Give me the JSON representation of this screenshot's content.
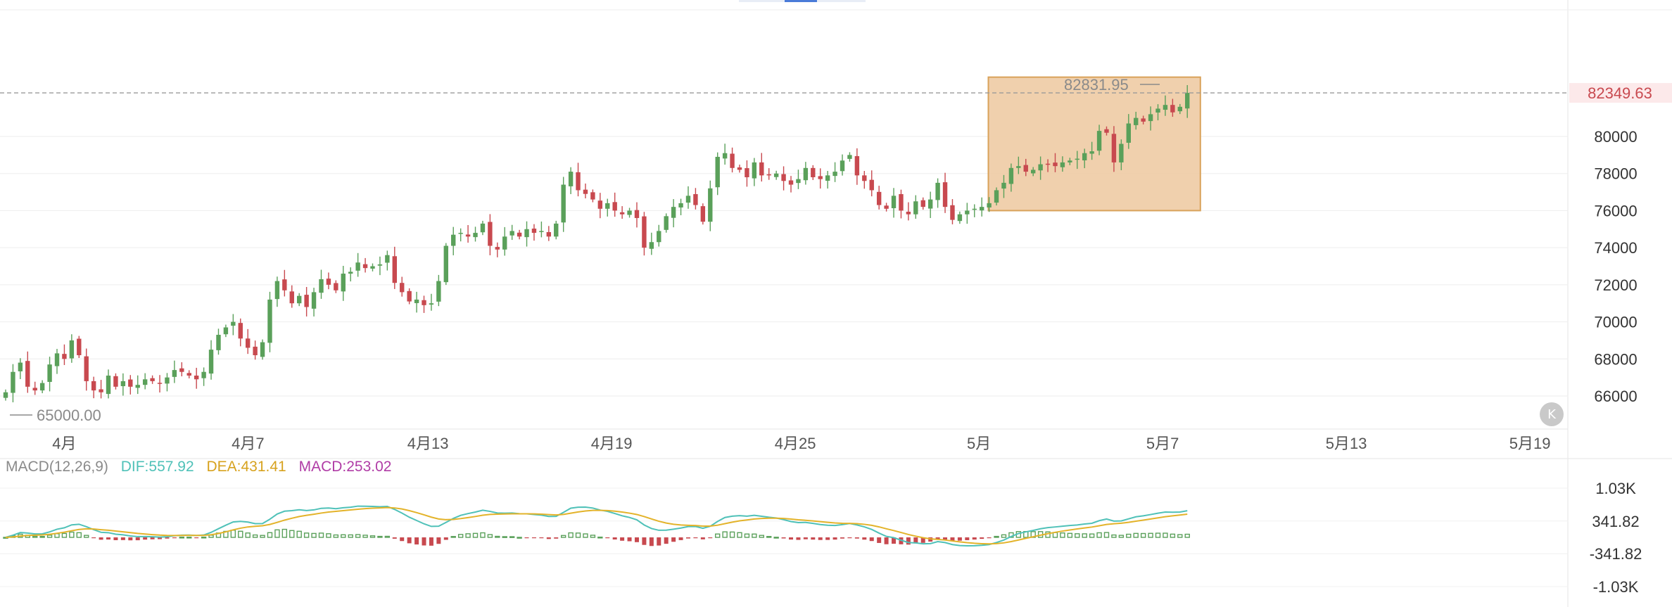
{
  "colors": {
    "up": "#5aa05a",
    "down": "#c8494f",
    "dif": "#4fc1b8",
    "dea": "#e3b32a",
    "macd_label": "#b03ca6",
    "label_gray": "#8a8a8a",
    "grid": "#eeeeee",
    "highlight_fill": "#eecba4",
    "highlight_stroke": "#d9a25a",
    "price_tag": "#c8494f"
  },
  "k_badge": "K",
  "macd_legend": {
    "name": "MACD(12,26,9)",
    "dif": "DIF:557.92",
    "dea": "DEA:431.41",
    "macd": "MACD:253.02"
  },
  "chart_data": [
    {
      "type": "candlestick",
      "title": "",
      "x_tick_labels": [
        "4月",
        "4月7",
        "4月13",
        "4月19",
        "4月25",
        "5月",
        "5月7",
        "5月13",
        "5月19"
      ],
      "y_tick_labels": [
        "66000",
        "68000",
        "70000",
        "72000",
        "74000",
        "76000",
        "78000",
        "80000"
      ],
      "ylim": [
        64000,
        84000
      ],
      "last_price": "82349.63",
      "high_marker": "82831.95",
      "low_marker": "65000.00",
      "highlighted_range": {
        "from_x": 53,
        "to_x": 64.5,
        "price_low": 76000,
        "price_high": 83200
      },
      "close": [
        66200,
        67300,
        67800,
        66500,
        66300,
        66700,
        67700,
        68300,
        68000,
        69000,
        68200,
        66800,
        66300,
        66200,
        67100,
        66500,
        66800,
        66500,
        66600,
        66900,
        66800,
        66700,
        67000,
        67400,
        67300,
        67100,
        66900,
        67300,
        68500,
        69300,
        69700,
        70000,
        69100,
        68600,
        68200,
        68900,
        71200,
        72200,
        71700,
        71000,
        71400,
        70800,
        71600,
        72300,
        72000,
        71700,
        72600,
        72700,
        73200,
        72900,
        73000,
        73100,
        73600,
        72100,
        71600,
        71100,
        71200,
        70900,
        71000,
        72200,
        74100,
        74700,
        74800,
        74600,
        74800,
        75300,
        74100,
        73900,
        74600,
        74900,
        74600,
        75000,
        74800,
        74900,
        74600,
        75300,
        77400,
        78100,
        77100,
        76900,
        76600,
        76100,
        76400,
        76000,
        75800,
        76000,
        75600,
        74000,
        74300,
        74900,
        75700,
        76200,
        76400,
        76800,
        76300,
        75400,
        77200,
        78900,
        79100,
        78300,
        78200,
        77800,
        78600,
        77900,
        77900,
        78000,
        77600,
        77400,
        77700,
        78300,
        77800,
        77700,
        77900,
        78100,
        78700,
        79000,
        77900,
        77600,
        77100,
        76300,
        76100,
        76800,
        76000,
        75800,
        76500,
        76200,
        76600,
        77500,
        76200,
        75500,
        75800,
        76000,
        76100,
        76200,
        76400,
        77100,
        77500,
        78300,
        78400,
        78100,
        78200,
        78500,
        78500,
        78400,
        78600,
        78700,
        78800,
        79100,
        79200,
        80300,
        80200,
        78600,
        79600,
        80700,
        81000,
        80800,
        81200,
        81500,
        81700,
        81300,
        81600,
        82350
      ],
      "tick_positions": [
        3.5,
        13.5,
        23.3,
        33.3,
        43.3,
        53.3,
        63.3,
        73.3,
        83.3
      ]
    },
    {
      "type": "macd",
      "title": "MACD(12,26,9)",
      "y_tick_labels": [
        "1.03K",
        "341.82",
        "-341.82",
        "-1.03K"
      ],
      "y_tick_values": [
        1030,
        341.82,
        -341.82,
        -1030
      ],
      "last": {
        "DIF": 557.92,
        "DEA": 431.41,
        "MACD": 253.02
      }
    }
  ]
}
